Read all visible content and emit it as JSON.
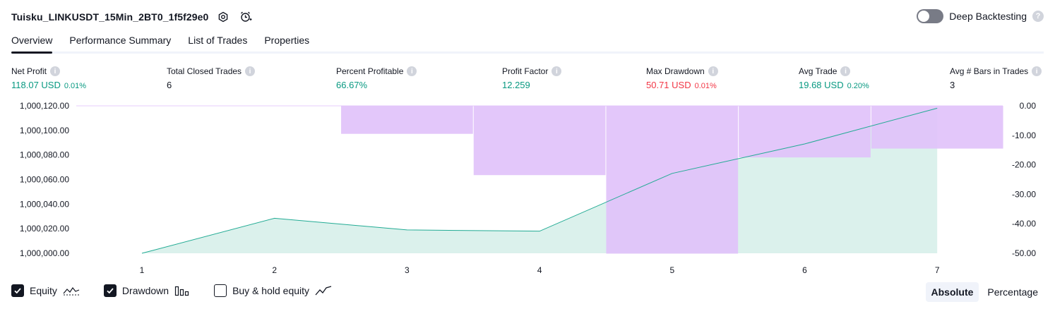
{
  "header": {
    "title": "Tuisku_LINKUSDT_15Min_2BT0_1f5f29e0",
    "deep_backtesting_label": "Deep Backtesting",
    "deep_backtesting_enabled": false
  },
  "tabs": [
    {
      "label": "Overview",
      "active": true
    },
    {
      "label": "Performance Summary",
      "active": false
    },
    {
      "label": "List of Trades",
      "active": false
    },
    {
      "label": "Properties",
      "active": false
    }
  ],
  "stats": {
    "net_profit": {
      "label": "Net Profit",
      "value": "118.07 USD",
      "sub": "0.01%"
    },
    "total_closed_trades": {
      "label": "Total Closed Trades",
      "value": "6"
    },
    "percent_profitable": {
      "label": "Percent Profitable",
      "value": "66.67%"
    },
    "profit_factor": {
      "label": "Profit Factor",
      "value": "12.259"
    },
    "max_drawdown": {
      "label": "Max Drawdown",
      "value": "50.71 USD",
      "sub": "0.01%"
    },
    "avg_trade": {
      "label": "Avg Trade",
      "value": "19.68 USD",
      "sub": "0.20%"
    },
    "avg_bars": {
      "label": "Avg # Bars in Trades",
      "value": "3"
    }
  },
  "colors": {
    "positive": "#089981",
    "negative": "#f23645",
    "equity_line": "#22ab94",
    "equity_fill": "#dbf1ec",
    "drawdown_fill": "#e1c2fa"
  },
  "chart_data": {
    "type": "area",
    "x": [
      1,
      2,
      3,
      4,
      5,
      6,
      7
    ],
    "x_tick_labels": [
      "1",
      "2",
      "3",
      "4",
      "5",
      "6",
      "7"
    ],
    "equity": [
      1000000.0,
      1000028.5,
      1000019.0,
      1000018.0,
      1000065.0,
      1000089.0,
      1000118.07
    ],
    "drawdown_bars": [
      {
        "x": 1,
        "value": 0.0
      },
      {
        "x": 2,
        "value": 0.0
      },
      {
        "x": 3,
        "value": -9.5
      },
      {
        "x": 4,
        "value": -23.5
      },
      {
        "x": 5,
        "value": -50.71
      },
      {
        "x": 6,
        "value": -17.5
      },
      {
        "x": 7,
        "value": -14.5
      }
    ],
    "left_axis": {
      "ylim": [
        1000000.0,
        1000120.0
      ],
      "ticks": [
        "1,000,000.00",
        "1,000,020.00",
        "1,000,040.00",
        "1,000,060.00",
        "1,000,080.00",
        "1,000,100.00",
        "1,000,120.00"
      ]
    },
    "right_axis": {
      "ylim": [
        -50.0,
        0.0
      ],
      "ticks": [
        "0.00",
        "-10.00",
        "-20.00",
        "-30.00",
        "-40.00",
        "-50.00"
      ]
    }
  },
  "legend": [
    {
      "label": "Equity",
      "checked": true,
      "icon": "equity-line-icon"
    },
    {
      "label": "Drawdown",
      "checked": true,
      "icon": "drawdown-bars-icon"
    },
    {
      "label": "Buy & hold equity",
      "checked": false,
      "icon": "buy-hold-line-icon"
    }
  ],
  "view_mode": {
    "absolute": "Absolute",
    "percentage": "Percentage",
    "active": "absolute"
  }
}
